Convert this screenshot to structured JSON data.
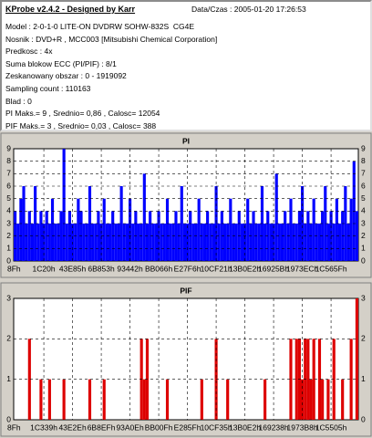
{
  "header": {
    "title": "KProbe v2.4.2 - Designed by Karr",
    "datetime": "Data/Czas : 2005-01-20 17:26:53"
  },
  "info": [
    "Model : 2-0-1-0 LITE-ON DVDRW SOHW-832S  CG4E",
    "Nosnik : DVD+R , MCC003 [Mitsubishi Chemical Corporation]",
    "Predkosc : 4x",
    "Suma blokow ECC (PI/PIF) : 8/1",
    "Zeskanowany obszar : 0 - 1919092",
    "Sampling count : 110163",
    "Blad : 0",
    "PI Maks.= 9 , Srednio= 0,86 , Calosc= 12054",
    "PIF Maks.= 3 , Srednio= 0,03 , Calosc= 388"
  ],
  "chart_data": [
    {
      "type": "bar",
      "title": "PI",
      "color": "#0000ff",
      "grid": true,
      "categories": [
        "8Fh",
        null,
        null,
        null,
        null,
        null,
        null,
        null,
        null,
        null,
        "1C20h",
        null,
        null,
        null,
        null,
        null,
        null,
        null,
        null,
        null,
        "43E85h",
        null,
        null,
        null,
        null,
        null,
        null,
        null,
        null,
        null,
        "6B853h",
        null,
        null,
        null,
        null,
        null,
        null,
        null,
        null,
        null,
        "93442h",
        null,
        null,
        null,
        null,
        null,
        null,
        null,
        null,
        null,
        "BB066h",
        null,
        null,
        null,
        null,
        null,
        null,
        null,
        null,
        null,
        "E27F6h",
        null,
        null,
        null,
        null,
        null,
        null,
        null,
        null,
        null,
        "10CF21h",
        null,
        null,
        null,
        null,
        null,
        null,
        null,
        null,
        null,
        "13B0E2h",
        null,
        null,
        null,
        null,
        null,
        null,
        null,
        null,
        null,
        "16925Bh",
        null,
        null,
        null,
        null,
        null,
        null,
        null,
        null,
        null,
        "1973ECh",
        null,
        null,
        null,
        null,
        null,
        null,
        null,
        null,
        null,
        "1C565Fh",
        null,
        null,
        null,
        null,
        null,
        null,
        null,
        null,
        null
      ],
      "values": [
        4,
        3,
        5,
        6,
        3,
        4,
        3,
        6,
        3,
        4,
        3,
        4,
        3,
        5,
        3,
        3,
        4,
        9,
        3,
        4,
        3,
        3,
        5,
        4,
        3,
        3,
        6,
        3,
        3,
        4,
        3,
        5,
        3,
        3,
        4,
        3,
        3,
        6,
        3,
        3,
        5,
        3,
        4,
        3,
        3,
        7,
        3,
        4,
        3,
        3,
        4,
        3,
        3,
        5,
        3,
        3,
        4,
        3,
        6,
        3,
        3,
        4,
        3,
        3,
        5,
        3,
        3,
        4,
        3,
        3,
        6,
        3,
        4,
        3,
        3,
        5,
        3,
        3,
        4,
        3,
        3,
        5,
        3,
        4,
        3,
        3,
        6,
        3,
        4,
        3,
        3,
        7,
        3,
        3,
        4,
        3,
        5,
        3,
        3,
        4,
        6,
        3,
        4,
        3,
        5,
        3,
        3,
        4,
        6,
        3,
        4,
        3,
        5,
        3,
        4,
        6,
        3,
        5,
        8,
        4
      ],
      "ylim": [
        0,
        9
      ],
      "yticks": [
        0,
        1,
        2,
        3,
        4,
        5,
        6,
        7,
        8,
        9
      ]
    },
    {
      "type": "bar",
      "title": "PIF",
      "color": "#dd0000",
      "grid": true,
      "categories": [
        "8Fh",
        null,
        null,
        null,
        null,
        null,
        null,
        null,
        null,
        null,
        "1C339h",
        null,
        null,
        null,
        null,
        null,
        null,
        null,
        null,
        null,
        "43E2Eh",
        null,
        null,
        null,
        null,
        null,
        null,
        null,
        null,
        null,
        "6B8EFh",
        null,
        null,
        null,
        null,
        null,
        null,
        null,
        null,
        null,
        "93A0Eh",
        null,
        null,
        null,
        null,
        null,
        null,
        null,
        null,
        null,
        "BB00Fh",
        null,
        null,
        null,
        null,
        null,
        null,
        null,
        null,
        null,
        "E285Fh",
        null,
        null,
        null,
        null,
        null,
        null,
        null,
        null,
        null,
        "10CF35h",
        null,
        null,
        null,
        null,
        null,
        null,
        null,
        null,
        null,
        "13B0E2h",
        null,
        null,
        null,
        null,
        null,
        null,
        null,
        null,
        null,
        "169238h",
        null,
        null,
        null,
        null,
        null,
        null,
        null,
        null,
        null,
        "1973B8h",
        null,
        null,
        null,
        null,
        null,
        null,
        null,
        null,
        null,
        "1C5505h",
        null,
        null,
        null,
        null,
        null,
        null,
        null,
        null,
        null
      ],
      "values": [
        0,
        0,
        0,
        0,
        0,
        2,
        0,
        0,
        0,
        1,
        0,
        0,
        1,
        0,
        0,
        0,
        0,
        1,
        0,
        0,
        0,
        0,
        0,
        0,
        0,
        0,
        1,
        0,
        0,
        0,
        0,
        1,
        0,
        0,
        0,
        0,
        0,
        0,
        0,
        0,
        0,
        0,
        0,
        0,
        2,
        1,
        2,
        0,
        0,
        0,
        0,
        0,
        0,
        1,
        0,
        0,
        0,
        0,
        0,
        0,
        0,
        0,
        0,
        0,
        0,
        1,
        0,
        0,
        0,
        0,
        2,
        0,
        0,
        0,
        1,
        0,
        0,
        0,
        0,
        0,
        0,
        0,
        0,
        0,
        0,
        0,
        0,
        1,
        0,
        0,
        0,
        0,
        0,
        0,
        0,
        0,
        2,
        0,
        2,
        2,
        1,
        2,
        2,
        1,
        2,
        0,
        2,
        1,
        0,
        1,
        0,
        2,
        0,
        0,
        1,
        0,
        0,
        2,
        0,
        3
      ],
      "ylim": [
        0,
        3
      ],
      "yticks": [
        0,
        1,
        2,
        3
      ]
    }
  ]
}
